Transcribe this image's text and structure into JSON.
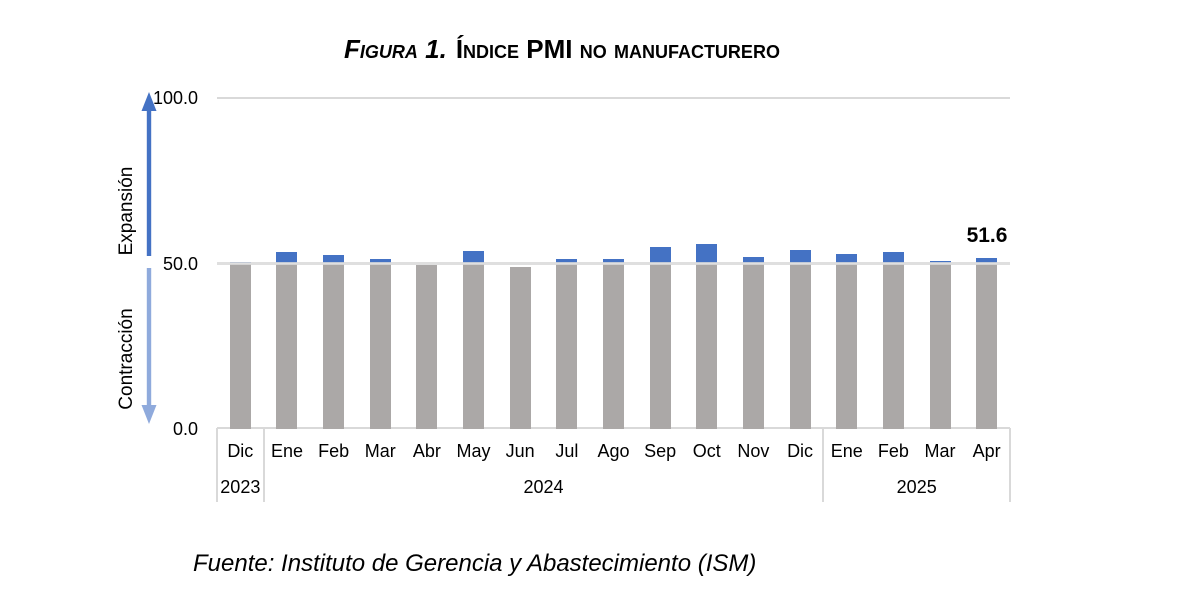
{
  "title": {
    "prefix": "Figura 1.",
    "main": "Índice PMI no manufacturero"
  },
  "source": {
    "text": "Fuente: Instituto de Gerencia y Abastecimiento (ISM)"
  },
  "colors": {
    "bar_base": "#ABA8A7",
    "bar_expansion": "#4472C4",
    "expansion_arrow": "#4472C4",
    "contraction_arrow": "#8FAADC",
    "gridline": "#D9D9D9"
  },
  "chart_data": {
    "type": "bar",
    "title": "Figura 1. Índice PMI no manufacturero",
    "xlabel": "",
    "ylabel": "",
    "ylim": [
      0,
      100
    ],
    "yticks": [
      "100.0",
      "50.0",
      "0.0"
    ],
    "reference_value": 50,
    "grid": "horizontal-major-only",
    "legend": "none",
    "bar_encoding": "gray segment up to 50, blue segment for amount above 50",
    "annotations": {
      "expansion": "Expansión",
      "contraction": "Contracción",
      "last_value_label": "51.6"
    },
    "groups": [
      {
        "year": "2023",
        "categories": [
          "Dic"
        ],
        "values": [
          50.5
        ]
      },
      {
        "year": "2024",
        "categories": [
          "Ene",
          "Feb",
          "Mar",
          "Abr",
          "May",
          "Jun",
          "Jul",
          "Ago",
          "Sep",
          "Oct",
          "Nov",
          "Dic"
        ],
        "values": [
          53.4,
          52.6,
          51.4,
          49.4,
          53.8,
          48.8,
          51.4,
          51.5,
          54.9,
          56.0,
          52.1,
          54.1
        ]
      },
      {
        "year": "2025",
        "categories": [
          "Ene",
          "Feb",
          "Mar",
          "Apr"
        ],
        "values": [
          52.8,
          53.5,
          50.8,
          51.6
        ]
      }
    ]
  }
}
